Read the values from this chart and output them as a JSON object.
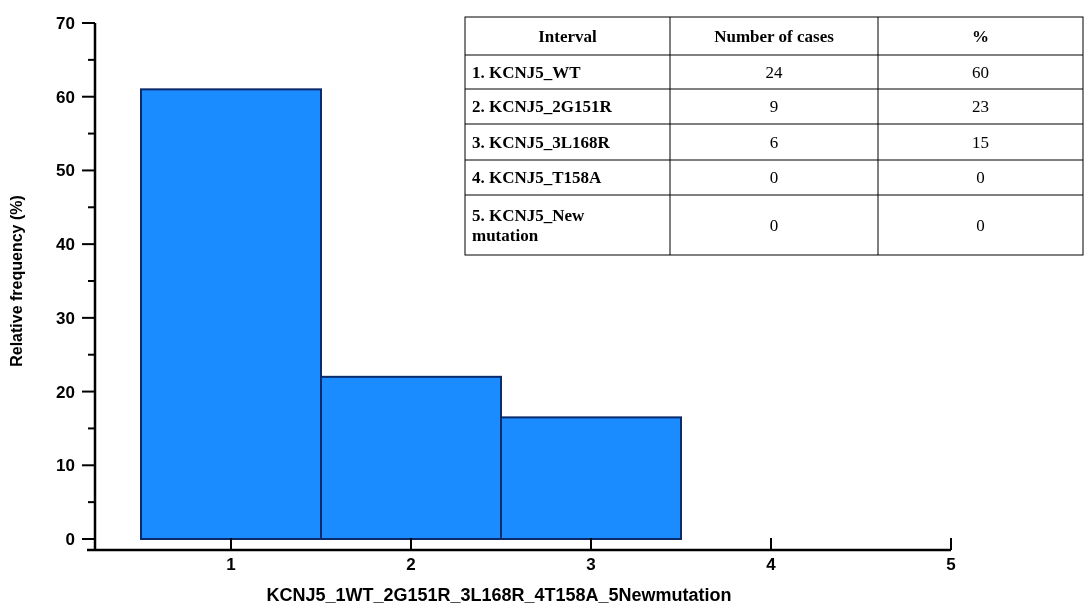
{
  "chart_data": {
    "type": "histogram",
    "xlabel": "KCNJ5_1WT_2G151R_3L168R_4T158A_5Newmutation",
    "ylabel": "Relative frequency (%)",
    "bins": [
      0.5,
      1.5,
      2.5,
      3.5
    ],
    "values": [
      61,
      22,
      16.5
    ],
    "color": "#1a8cff",
    "xlim": [
      0.2,
      5
    ],
    "xticks": [
      1,
      2,
      3,
      4,
      5
    ],
    "ylim": [
      0,
      70
    ],
    "yticks": [
      0,
      {
        "value": 5,
        "label": null
      },
      10,
      {
        "value": 15,
        "label": null
      },
      20,
      {
        "value": 25,
        "label": null
      },
      30,
      {
        "value": 35,
        "label": null
      },
      40,
      {
        "value": 45,
        "label": null
      },
      50,
      {
        "value": 55,
        "label": null
      },
      60,
      {
        "value": 65,
        "label": null
      },
      70
    ],
    "grid": false,
    "annotations": [
      "Interval",
      "Number of cases",
      "%",
      "1. KCNJ5_WT",
      "24",
      "60",
      "2. KCNJ5_2G151R",
      "9",
      "23",
      "3. KCNJ5_3L168R",
      "6",
      "15",
      "4. KCNJ5_T158A",
      "0",
      "0",
      "5. KCNJ5_New mutation",
      "0",
      "0"
    ]
  }
}
